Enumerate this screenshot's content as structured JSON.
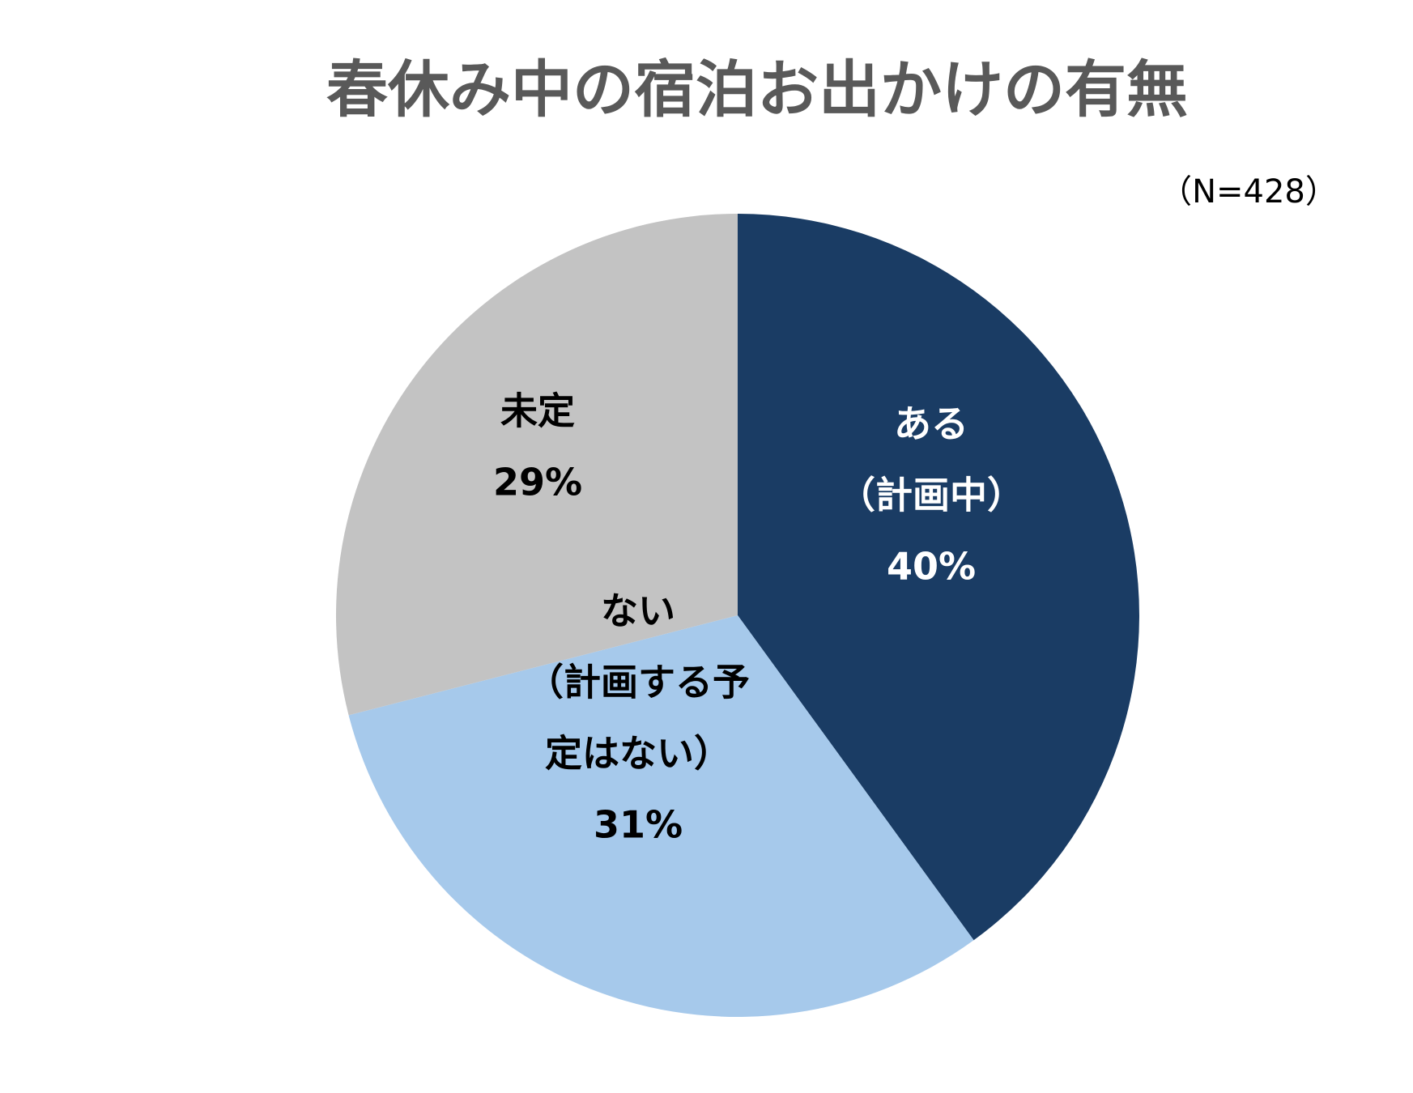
{
  "chart_data": {
    "type": "pie",
    "title": "春休み中の宿泊お出かけの有無",
    "subtitle": "（N=428）",
    "slices": [
      {
        "category_lines": [
          "ある",
          "（計画中）"
        ],
        "value": 40,
        "percent_label": "40%",
        "color": "#1a3c64",
        "label_color": "#ffffff"
      },
      {
        "category_lines": [
          "ない",
          "（計画する予",
          "定はない）"
        ],
        "value": 31,
        "percent_label": "31%",
        "color": "#a6c9eb",
        "label_color": "#000000"
      },
      {
        "category_lines": [
          "未定"
        ],
        "value": 29,
        "percent_label": "29%",
        "color": "#c3c3c3",
        "label_color": "#000000"
      }
    ],
    "start_angle": "12 o'clock",
    "direction": "clockwise",
    "legend": "none"
  }
}
